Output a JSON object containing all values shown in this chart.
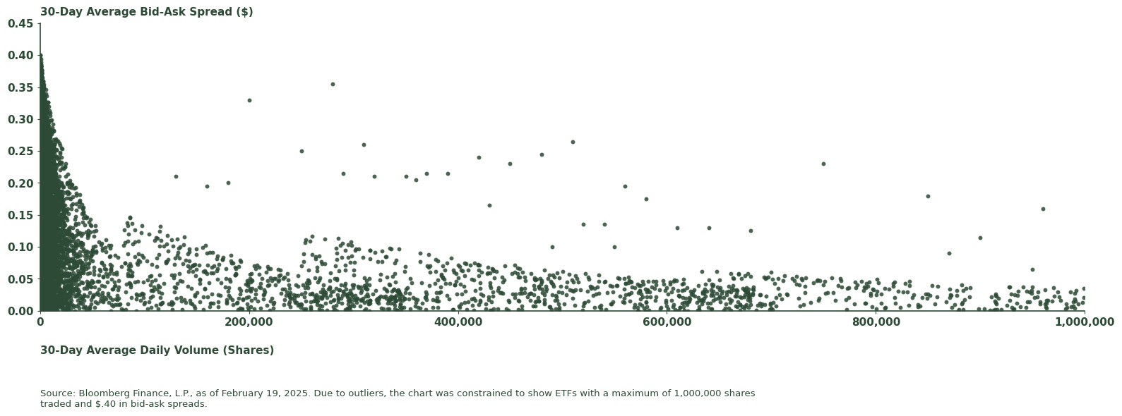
{
  "xlim": [
    0,
    1000000
  ],
  "ylim": [
    0,
    0.45
  ],
  "xticks": [
    0,
    200000,
    400000,
    600000,
    800000,
    1000000
  ],
  "xtick_labels": [
    "0",
    "200,000",
    "400,000",
    "600,000",
    "800,000",
    "1,000,000"
  ],
  "yticks": [
    0.0,
    0.05,
    0.1,
    0.15,
    0.2,
    0.25,
    0.3,
    0.35,
    0.4,
    0.45
  ],
  "ytick_labels": [
    "0.00",
    "0.05",
    "0.10",
    "0.15",
    "0.20",
    "0.25",
    "0.30",
    "0.35",
    "0.40",
    "0.45"
  ],
  "ylabel": "30-Day Average Bid-Ask Spread ($)",
  "xlabel": "30-Day Average Daily Volume (Shares)",
  "dot_color": "#2c4a35",
  "dot_size": 18,
  "dot_alpha": 0.85,
  "background_color": "#ffffff",
  "source_text": "Source: Bloomberg Finance, L.P., as of February 19, 2025. Due to outliers, the chart was constrained to show ETFs with a maximum of 1,000,000 shares\ntraded and $.40 in bid-ask spreads.",
  "n_dense": 3000,
  "n_sparse": 600,
  "seed": 42
}
